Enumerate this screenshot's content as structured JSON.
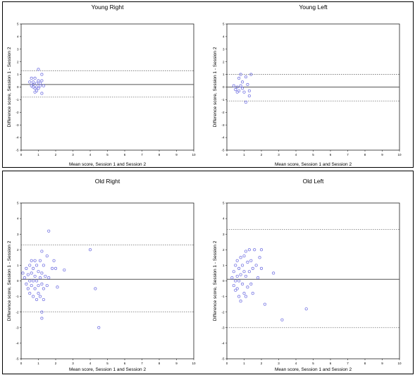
{
  "chart_data": [
    {
      "type": "scatter",
      "title": "Young Right",
      "xlabel": "Mean score, Session 1 and Session 2",
      "ylabel": "Difference score, Session 1 - Session 2",
      "xlim": [
        0,
        10
      ],
      "ylim": [
        -5,
        5
      ],
      "x_ticks": [
        "0",
        "1",
        "2",
        "3",
        "4",
        "5",
        "6",
        "7",
        "8",
        "9",
        "10"
      ],
      "y_ticks": [
        "5",
        "4",
        "3",
        "2",
        "1",
        "0",
        "-1",
        "-2",
        "-3",
        "-4",
        "-5"
      ],
      "mean_line": 0.2,
      "limits": [
        1.3,
        -0.8
      ],
      "points": [
        [
          0.5,
          0.4
        ],
        [
          0.6,
          0.7
        ],
        [
          0.7,
          0.4
        ],
        [
          0.8,
          0.7
        ],
        [
          0.9,
          0.3
        ],
        [
          1.0,
          0.5
        ],
        [
          1.1,
          0.3
        ],
        [
          1.2,
          0.5
        ],
        [
          0.6,
          0.1
        ],
        [
          0.7,
          0.0
        ],
        [
          0.8,
          -0.1
        ],
        [
          0.9,
          0.0
        ],
        [
          1.0,
          -0.1
        ],
        [
          1.1,
          0.1
        ],
        [
          0.8,
          -0.4
        ],
        [
          1.2,
          -0.5
        ],
        [
          0.9,
          -0.3
        ],
        [
          1.0,
          1.4
        ],
        [
          1.2,
          1.0
        ],
        [
          0.7,
          0.2
        ],
        [
          1.3,
          0.1
        ]
      ]
    },
    {
      "type": "scatter",
      "title": "Young Left",
      "xlabel": "Mean score, Session 1 and Session 2",
      "ylabel": "Difference score, Session 1 - Session 2",
      "xlim": [
        0,
        10
      ],
      "ylim": [
        -5,
        5
      ],
      "x_ticks": [
        "0",
        "1",
        "2",
        "3",
        "4",
        "5",
        "6",
        "7",
        "8",
        "9",
        "10"
      ],
      "y_ticks": [
        "5",
        "4",
        "3",
        "2",
        "1",
        "0",
        "-1",
        "-2",
        "-3",
        "-4",
        "-5"
      ],
      "mean_line": 0.0,
      "limits": [
        1.0,
        -1.1
      ],
      "points": [
        [
          0.4,
          0.1
        ],
        [
          0.5,
          -0.2
        ],
        [
          0.6,
          0.0
        ],
        [
          0.7,
          0.7
        ],
        [
          0.8,
          1.0
        ],
        [
          0.7,
          -0.3
        ],
        [
          0.8,
          0.1
        ],
        [
          0.9,
          -0.1
        ],
        [
          1.0,
          -0.4
        ],
        [
          1.1,
          0.8
        ],
        [
          1.2,
          0.2
        ],
        [
          1.3,
          -0.7
        ],
        [
          1.4,
          1.0
        ],
        [
          1.3,
          -0.3
        ],
        [
          1.1,
          -1.2
        ],
        [
          0.6,
          -0.4
        ],
        [
          0.9,
          0.4
        ]
      ]
    },
    {
      "type": "scatter",
      "title": "Old Right",
      "xlabel": "Mean score, Session 1 and Session 2",
      "ylabel": "Difference score, Session 1 - Session 2",
      "xlim": [
        0,
        10
      ],
      "ylim": [
        -5,
        5
      ],
      "x_ticks": [
        "0",
        "1",
        "2",
        "3",
        "4",
        "5",
        "6",
        "7",
        "8",
        "9",
        "10"
      ],
      "y_ticks": [
        "5",
        "4",
        "3",
        "2",
        "1",
        "0",
        "-1",
        "-2",
        "-3",
        "-4",
        "-5"
      ],
      "mean_line": 0.1,
      "limits": [
        2.3,
        -2.0
      ],
      "points": [
        [
          0.1,
          0.5
        ],
        [
          0.2,
          0.2
        ],
        [
          0.3,
          0.8
        ],
        [
          0.3,
          -0.2
        ],
        [
          0.4,
          0.4
        ],
        [
          0.4,
          -0.5
        ],
        [
          0.5,
          1.0
        ],
        [
          0.5,
          0.0
        ],
        [
          0.5,
          -0.8
        ],
        [
          0.6,
          1.3
        ],
        [
          0.6,
          0.5
        ],
        [
          0.6,
          -0.3
        ],
        [
          0.7,
          0.8
        ],
        [
          0.7,
          0.0
        ],
        [
          0.7,
          -1.0
        ],
        [
          0.8,
          1.3
        ],
        [
          0.8,
          0.3
        ],
        [
          0.8,
          -0.5
        ],
        [
          0.9,
          1.0
        ],
        [
          0.9,
          0.0
        ],
        [
          0.9,
          -1.2
        ],
        [
          1.0,
          0.6
        ],
        [
          1.0,
          -0.3
        ],
        [
          1.0,
          -0.8
        ],
        [
          1.1,
          1.3
        ],
        [
          1.1,
          0.2
        ],
        [
          1.1,
          -1.0
        ],
        [
          1.2,
          1.9
        ],
        [
          1.2,
          0.5
        ],
        [
          1.2,
          -0.2
        ],
        [
          1.2,
          -2.0
        ],
        [
          1.3,
          1.0
        ],
        [
          1.3,
          -0.5
        ],
        [
          1.3,
          -1.2
        ],
        [
          1.2,
          -2.4
        ],
        [
          1.4,
          0.3
        ],
        [
          1.5,
          1.6
        ],
        [
          1.5,
          -0.3
        ],
        [
          1.6,
          3.2
        ],
        [
          1.6,
          0.2
        ],
        [
          1.8,
          0.8
        ],
        [
          1.9,
          1.3
        ],
        [
          2.0,
          0.8
        ],
        [
          2.1,
          -0.4
        ],
        [
          2.5,
          0.7
        ],
        [
          4.0,
          2.0
        ],
        [
          4.3,
          -0.5
        ],
        [
          4.5,
          -3.0
        ]
      ]
    },
    {
      "type": "scatter",
      "title": "Old Left",
      "xlabel": "Mean score, Session 1 and Session 2",
      "ylabel": "Difference score, Session 1 - Session 2",
      "xlim": [
        0,
        10
      ],
      "ylim": [
        -5,
        5
      ],
      "x_ticks": [
        "0",
        "1",
        "2",
        "3",
        "4",
        "5",
        "6",
        "7",
        "8",
        "9",
        "10"
      ],
      "y_ticks": [
        "5",
        "4",
        "3",
        "2",
        "1",
        "0",
        "-1",
        "-2",
        "-3",
        "-4",
        "-5"
      ],
      "mean_line": 0.1,
      "limits": [
        3.3,
        -3.0
      ],
      "points": [
        [
          0.3,
          0.2
        ],
        [
          0.4,
          0.6
        ],
        [
          0.4,
          -0.3
        ],
        [
          0.5,
          1.0
        ],
        [
          0.5,
          0.0
        ],
        [
          0.5,
          -0.6
        ],
        [
          0.6,
          1.3
        ],
        [
          0.6,
          0.3
        ],
        [
          0.6,
          -0.5
        ],
        [
          0.7,
          0.8
        ],
        [
          0.7,
          0.0
        ],
        [
          0.7,
          -1.0
        ],
        [
          0.8,
          1.5
        ],
        [
          0.8,
          0.4
        ],
        [
          0.8,
          -1.3
        ],
        [
          0.9,
          1.0
        ],
        [
          0.9,
          -0.2
        ],
        [
          1.0,
          1.6
        ],
        [
          1.0,
          0.6
        ],
        [
          1.0,
          -0.8
        ],
        [
          1.1,
          1.9
        ],
        [
          1.1,
          0.3
        ],
        [
          1.1,
          -1.0
        ],
        [
          1.2,
          1.2
        ],
        [
          1.2,
          -0.4
        ],
        [
          1.3,
          2.0
        ],
        [
          1.3,
          0.6
        ],
        [
          1.4,
          1.3
        ],
        [
          1.4,
          -0.2
        ],
        [
          1.5,
          0.8
        ],
        [
          1.5,
          -0.8
        ],
        [
          1.6,
          2.0
        ],
        [
          1.7,
          1.0
        ],
        [
          1.8,
          0.2
        ],
        [
          1.9,
          1.5
        ],
        [
          2.0,
          2.0
        ],
        [
          2.0,
          0.8
        ],
        [
          2.2,
          -1.5
        ],
        [
          2.7,
          0.5
        ],
        [
          3.2,
          -2.5
        ],
        [
          4.6,
          -1.8
        ]
      ]
    }
  ]
}
